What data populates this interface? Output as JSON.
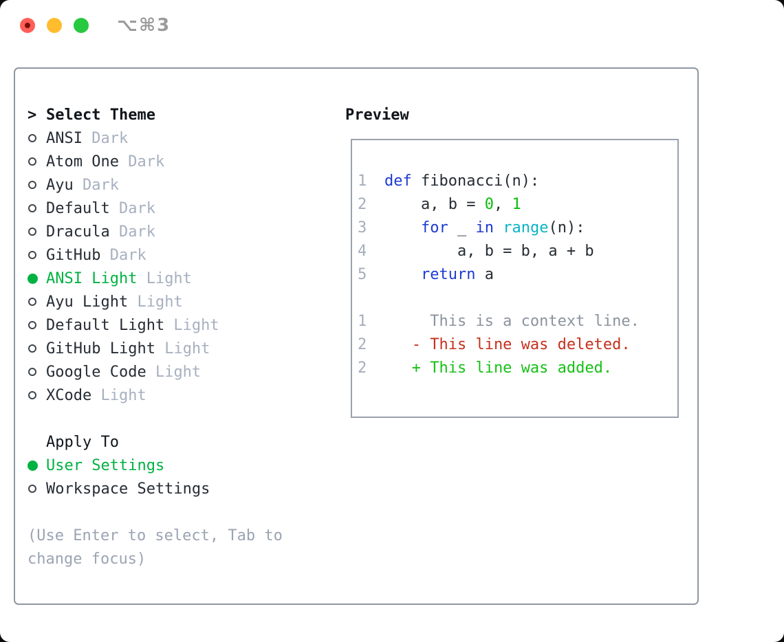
{
  "titlebar": {
    "title": "⌥⌘3"
  },
  "colors": {
    "light_red": "#ff5f57",
    "light_yellow": "#febc2e",
    "light_green": "#28c840",
    "title_gray": "#9b9b9b",
    "frame_border": "#8f97a2",
    "preview_border": "#99a1ac",
    "ink_strong": "#10151a",
    "ink": "#262c34",
    "muted": "#a7b0c0",
    "help_gray": "#9ba4b3",
    "ring": "#40464e",
    "sel_green": "#00b241",
    "lnum": "#a4adbc",
    "kw_blue": "#1e3ad2",
    "num_green": "#0bbc0b",
    "builtin_cyan": "#0ab4c6",
    "ctx_gray": "#8b939d",
    "del_red": "#c5301c",
    "add_green": "#16c016"
  },
  "left": {
    "header_marker": ">",
    "header": "Select Theme",
    "themes": [
      {
        "name": "ANSI",
        "variant": "Dark",
        "selected": false
      },
      {
        "name": "Atom One",
        "variant": "Dark",
        "selected": false
      },
      {
        "name": "Ayu",
        "variant": "Dark",
        "selected": false
      },
      {
        "name": "Default",
        "variant": "Dark",
        "selected": false
      },
      {
        "name": "Dracula",
        "variant": "Dark",
        "selected": false
      },
      {
        "name": "GitHub",
        "variant": "Dark",
        "selected": false
      },
      {
        "name": "ANSI Light",
        "variant": "Light",
        "selected": true
      },
      {
        "name": "Ayu Light",
        "variant": "Light",
        "selected": false
      },
      {
        "name": "Default Light",
        "variant": "Light",
        "selected": false
      },
      {
        "name": "GitHub Light",
        "variant": "Light",
        "selected": false
      },
      {
        "name": "Google Code",
        "variant": "Light",
        "selected": false
      },
      {
        "name": "XCode",
        "variant": "Light",
        "selected": false
      }
    ],
    "apply_to": {
      "header": "Apply To",
      "options": [
        {
          "label": "User Settings",
          "selected": true
        },
        {
          "label": "Workspace Settings",
          "selected": false
        }
      ]
    },
    "help_lines": [
      "(Use Enter to select, Tab to",
      "change focus)"
    ]
  },
  "preview": {
    "header": "Preview",
    "lines": [
      {
        "num": "1",
        "tokens": [
          {
            "t": "def",
            "c": "keyword"
          },
          {
            "t": " fibonacci(n):",
            "c": "plain"
          }
        ]
      },
      {
        "num": "2",
        "tokens": [
          {
            "t": "    a, b = ",
            "c": "plain"
          },
          {
            "t": "0",
            "c": "number"
          },
          {
            "t": ", ",
            "c": "plain"
          },
          {
            "t": "1",
            "c": "number"
          }
        ]
      },
      {
        "num": "3",
        "tokens": [
          {
            "t": "    ",
            "c": "plain"
          },
          {
            "t": "for",
            "c": "keyword"
          },
          {
            "t": " _ ",
            "c": "plain"
          },
          {
            "t": "in",
            "c": "keyword"
          },
          {
            "t": " ",
            "c": "plain"
          },
          {
            "t": "range",
            "c": "builtin"
          },
          {
            "t": "(n):",
            "c": "plain"
          }
        ]
      },
      {
        "num": "4",
        "tokens": [
          {
            "t": "        a, b = b, a + b",
            "c": "plain"
          }
        ]
      },
      {
        "num": "5",
        "tokens": [
          {
            "t": "    ",
            "c": "plain"
          },
          {
            "t": "return",
            "c": "keyword"
          },
          {
            "t": " a",
            "c": "plain"
          }
        ]
      },
      {
        "num": "",
        "tokens": []
      },
      {
        "num": "1",
        "tokens": [
          {
            "t": "     This is a context line.",
            "c": "context"
          }
        ]
      },
      {
        "num": "2",
        "tokens": [
          {
            "t": "   - This line was deleted.",
            "c": "deleted"
          }
        ]
      },
      {
        "num": "2",
        "tokens": [
          {
            "t": "   + This line was added.",
            "c": "added"
          }
        ]
      }
    ]
  }
}
